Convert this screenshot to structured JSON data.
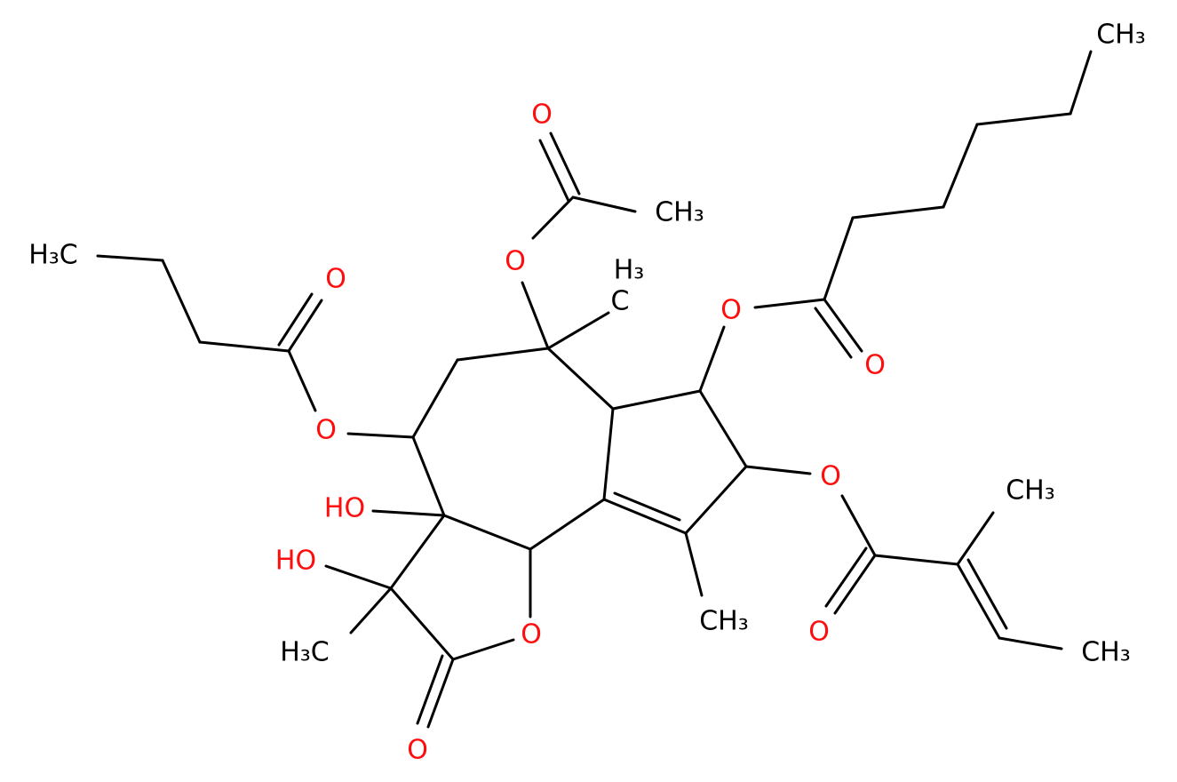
{
  "atoms": [
    {
      "label": "CH₃"
    },
    {
      "label": "O"
    },
    {
      "label": "CH₃"
    },
    {
      "label": "O"
    },
    {
      "label": "H₃"
    },
    {
      "label": "C"
    },
    {
      "label": "O"
    },
    {
      "label": "O"
    },
    {
      "label": "H₃C"
    },
    {
      "label": "O"
    },
    {
      "label": "O"
    },
    {
      "label": "O"
    },
    {
      "label": "CH₃"
    },
    {
      "label": "HO"
    },
    {
      "label": "HO"
    },
    {
      "label": "O"
    },
    {
      "label": "O"
    },
    {
      "label": "CH₃"
    },
    {
      "label": "CH₃"
    },
    {
      "label": "H₃C"
    },
    {
      "label": "O"
    }
  ]
}
